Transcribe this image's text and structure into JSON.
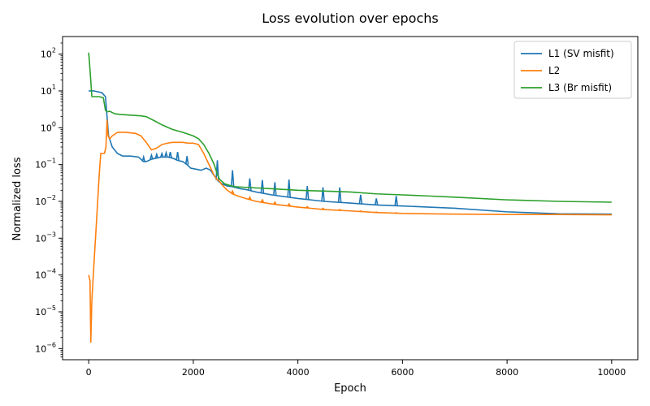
{
  "chart_data": {
    "type": "line",
    "title": "Loss evolution over epochs",
    "xlabel": "Epoch",
    "ylabel": "Normalized loss",
    "xlim": [
      -500,
      10500
    ],
    "ylim": [
      5e-07,
      300
    ],
    "yscale": "log",
    "grid": false,
    "legend_position": "top-right",
    "x_ticks": [
      0,
      2000,
      4000,
      6000,
      8000,
      10000
    ],
    "x_tick_labels": [
      "0",
      "2000",
      "4000",
      "6000",
      "8000",
      "10000"
    ],
    "y_tick_exponents": [
      -6,
      -5,
      -4,
      -3,
      -2,
      -1,
      0,
      1,
      2
    ],
    "y_tick_labels": [
      "10",
      "10",
      "10",
      "10",
      "10",
      "10",
      "10",
      "10",
      "10"
    ],
    "y_tick_superscripts": [
      "−6",
      "−5",
      "−4",
      "−3",
      "−2",
      "−1",
      "0",
      "1",
      "2"
    ],
    "series": [
      {
        "name": "L1 (SV misfit)",
        "color": "#1f77b4",
        "x": [
          0,
          100,
          250,
          320,
          380,
          450,
          550,
          650,
          800,
          950,
          1050,
          1100,
          1200,
          1300,
          1400,
          1500,
          1600,
          1700,
          1800,
          1880,
          1950,
          2050,
          2150,
          2250,
          2330,
          2400,
          2450,
          2480,
          2550,
          2650,
          2750,
          2900,
          3000,
          3200,
          3500,
          4000,
          4500,
          5000,
          5500,
          6000,
          7000,
          8000,
          9000,
          10000
        ],
        "y": [
          10,
          10,
          9,
          7,
          0.6,
          0.3,
          0.2,
          0.17,
          0.17,
          0.16,
          0.12,
          0.12,
          0.14,
          0.15,
          0.16,
          0.16,
          0.15,
          0.13,
          0.12,
          0.1,
          0.08,
          0.075,
          0.07,
          0.08,
          0.07,
          0.05,
          0.04,
          0.035,
          0.03,
          0.026,
          0.025,
          0.022,
          0.021,
          0.018,
          0.015,
          0.012,
          0.01,
          0.009,
          0.008,
          0.0075,
          0.0065,
          0.0052,
          0.0046,
          0.0045
        ],
        "spikes": [
          {
            "x": 1050,
            "y": 0.16
          },
          {
            "x": 1200,
            "y": 0.18
          },
          {
            "x": 1300,
            "y": 0.19
          },
          {
            "x": 1400,
            "y": 0.2
          },
          {
            "x": 1480,
            "y": 0.21
          },
          {
            "x": 1560,
            "y": 0.22
          },
          {
            "x": 1700,
            "y": 0.22
          },
          {
            "x": 1880,
            "y": 0.17
          },
          {
            "x": 2460,
            "y": 0.13
          },
          {
            "x": 2750,
            "y": 0.07
          },
          {
            "x": 3080,
            "y": 0.042
          },
          {
            "x": 3320,
            "y": 0.038
          },
          {
            "x": 3560,
            "y": 0.033
          },
          {
            "x": 3830,
            "y": 0.039
          },
          {
            "x": 4180,
            "y": 0.026
          },
          {
            "x": 4480,
            "y": 0.024
          },
          {
            "x": 4800,
            "y": 0.024
          },
          {
            "x": 5200,
            "y": 0.015
          },
          {
            "x": 5500,
            "y": 0.012
          },
          {
            "x": 5880,
            "y": 0.014
          }
        ]
      },
      {
        "name": "L2",
        "color": "#ff7f0e",
        "x": [
          0,
          25,
          40,
          60,
          100,
          150,
          200,
          230,
          300,
          330,
          350,
          370,
          400,
          450,
          550,
          700,
          900,
          1000,
          1100,
          1200,
          1300,
          1400,
          1500,
          1600,
          1700,
          1800,
          1900,
          2000,
          2100,
          2200,
          2300,
          2400,
          2450,
          2500,
          2550,
          2650,
          2750,
          2850,
          3000,
          3200,
          3500,
          4000,
          4500,
          5000,
          5500,
          6000,
          7000,
          8000,
          9000,
          10000
        ],
        "y": [
          0.0001,
          7e-05,
          1.5e-06,
          2e-05,
          0.0002,
          0.003,
          0.05,
          0.2,
          0.2,
          0.3,
          1.6,
          0.6,
          0.5,
          0.6,
          0.75,
          0.75,
          0.7,
          0.6,
          0.4,
          0.25,
          0.28,
          0.35,
          0.38,
          0.4,
          0.4,
          0.4,
          0.38,
          0.38,
          0.35,
          0.2,
          0.1,
          0.05,
          0.04,
          0.035,
          0.028,
          0.02,
          0.016,
          0.014,
          0.012,
          0.01,
          0.0085,
          0.007,
          0.006,
          0.0055,
          0.005,
          0.0047,
          0.0045,
          0.0044,
          0.0044,
          0.0043
        ],
        "spikes": [
          {
            "x": 2750,
            "y": 0.019
          },
          {
            "x": 3080,
            "y": 0.013
          },
          {
            "x": 3320,
            "y": 0.011
          },
          {
            "x": 3560,
            "y": 0.0095
          },
          {
            "x": 3830,
            "y": 0.0085
          },
          {
            "x": 4180,
            "y": 0.0072
          },
          {
            "x": 4480,
            "y": 0.0065
          },
          {
            "x": 4800,
            "y": 0.006
          },
          {
            "x": 5200,
            "y": 0.0055
          },
          {
            "x": 5500,
            "y": 0.0051
          },
          {
            "x": 5880,
            "y": 0.0049
          }
        ]
      },
      {
        "name": "L3 (Br misfit)",
        "color": "#2ca02c",
        "x": [
          0,
          30,
          60,
          100,
          200,
          280,
          320,
          350,
          400,
          500,
          600,
          800,
          1000,
          1100,
          1200,
          1400,
          1600,
          1800,
          2000,
          2100,
          2200,
          2300,
          2400,
          2450,
          2500,
          2600,
          2700,
          2800,
          3000,
          3500,
          4000,
          4500,
          5000,
          5500,
          6000,
          6500,
          7000,
          8000,
          9000,
          10000
        ],
        "y": [
          110,
          30,
          7,
          7,
          7,
          6.5,
          3,
          2.7,
          2.8,
          2.4,
          2.3,
          2.2,
          2.1,
          2.0,
          1.7,
          1.2,
          0.9,
          0.75,
          0.6,
          0.5,
          0.35,
          0.2,
          0.1,
          0.06,
          0.04,
          0.03,
          0.027,
          0.025,
          0.024,
          0.022,
          0.02,
          0.019,
          0.018,
          0.016,
          0.015,
          0.014,
          0.013,
          0.011,
          0.01,
          0.0095
        ]
      }
    ]
  }
}
